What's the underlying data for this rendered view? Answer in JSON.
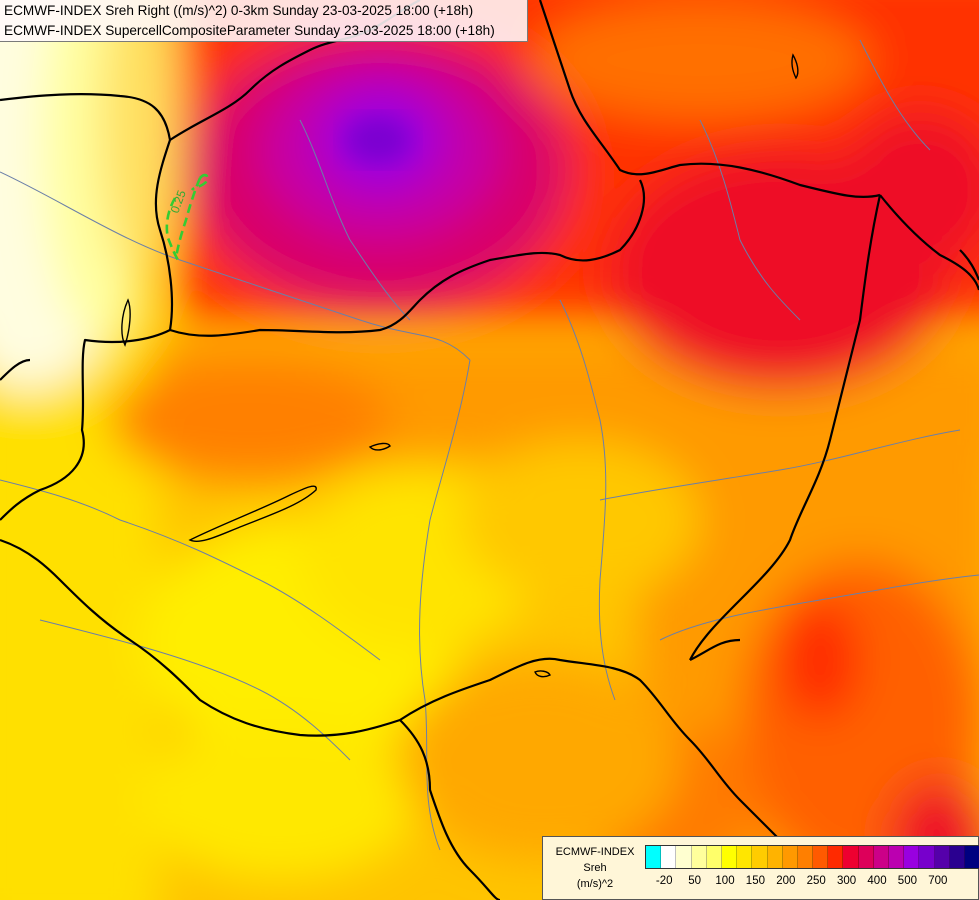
{
  "title": {
    "line1": "ECMWF-INDEX Sreh Right ((m/s)^2) 0-3km Sunday 23-03-2025 18:00 (+18h)",
    "line2": "ECMWF-INDEX SupercellCompositeParameter Sunday 23-03-2025 18:00 (+18h)"
  },
  "contour_label": "0.25",
  "legend": {
    "name_line1": "ECMWF-INDEX",
    "name_line2": "Sreh",
    "name_line3": "(m/s)^2",
    "colors": [
      "#00ffff",
      "#ffffff",
      "#ffffd0",
      "#ffff9c",
      "#ffff6a",
      "#ffff00",
      "#ffe600",
      "#ffcc00",
      "#ffb300",
      "#ff9900",
      "#ff7f00",
      "#ff5a00",
      "#ff2a00",
      "#ee0030",
      "#dd005a",
      "#cc0088",
      "#bb00b0",
      "#9900e0",
      "#7700cc",
      "#5500aa",
      "#2a0090",
      "#000080"
    ],
    "labels": [
      "-20",
      "50",
      "100",
      "150",
      "200",
      "250",
      "300",
      "400",
      "500",
      "700"
    ]
  }
}
